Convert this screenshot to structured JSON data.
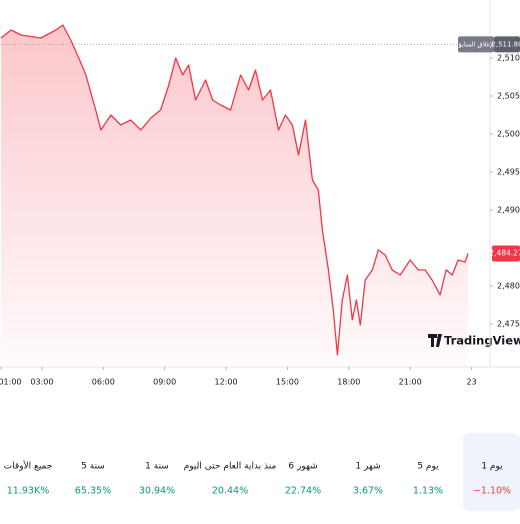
{
  "chart_data": {
    "type": "line",
    "color": "#f23645",
    "x": [
      1.0,
      1.49,
      1.98,
      2.95,
      3.68,
      4.02,
      4.41,
      4.8,
      5.15,
      5.63,
      5.88,
      6.37,
      6.85,
      7.34,
      7.83,
      8.32,
      8.8,
      9.2,
      9.54,
      9.88,
      10.17,
      10.51,
      11.0,
      11.34,
      11.73,
      12.22,
      12.71,
      13.1,
      13.44,
      13.78,
      14.17,
      14.56,
      14.9,
      15.24,
      15.54,
      15.88,
      16.22,
      16.51,
      16.71,
      17.0,
      17.24,
      17.44,
      17.68,
      17.93,
      18.17,
      18.37,
      18.56,
      18.8,
      19.15,
      19.44,
      19.78,
      20.12,
      20.51,
      21.0,
      21.39,
      21.73,
      22.07,
      22.46,
      22.76,
      23.05,
      23.34,
      23.68,
      23.83
    ],
    "values": [
      2512.63,
      2513.68,
      2513.03,
      2512.63,
      2513.68,
      2514.34,
      2512.37,
      2510.0,
      2507.76,
      2503.16,
      2500.53,
      2502.5,
      2501.18,
      2501.84,
      2500.53,
      2502.11,
      2503.16,
      2506.45,
      2510.0,
      2507.76,
      2509.08,
      2504.47,
      2507.11,
      2504.47,
      2503.82,
      2503.16,
      2507.76,
      2505.79,
      2508.42,
      2504.47,
      2505.79,
      2500.53,
      2502.5,
      2501.18,
      2497.24,
      2501.84,
      2493.95,
      2492.63,
      2487.37,
      2482.11,
      2476.84,
      2470.92,
      2478.16,
      2481.45,
      2475.53,
      2478.16,
      2474.87,
      2480.79,
      2482.11,
      2484.74,
      2484.08,
      2482.11,
      2481.45,
      2483.42,
      2482.11,
      2482.11,
      2480.79,
      2478.82,
      2482.11,
      2481.45,
      2483.42,
      2483.16,
      2484.27
    ],
    "xlim": [
      0.95,
      24.9
    ],
    "xticks": [
      {
        "value": 1,
        "label": "01:00"
      },
      {
        "value": 3,
        "label": "03:00"
      },
      {
        "value": 6,
        "label": "06:00"
      },
      {
        "value": 9,
        "label": "09:00"
      },
      {
        "value": 12,
        "label": "12:00"
      },
      {
        "value": 15,
        "label": "15:00"
      },
      {
        "value": 18,
        "label": "18:00"
      },
      {
        "value": 21,
        "label": "21:00"
      },
      {
        "value": 24,
        "label": "23"
      }
    ],
    "ylim": [
      2469.6,
      2515.0
    ],
    "yticks": [
      {
        "value": 2475,
        "label": "2,475.00"
      },
      {
        "value": 2480,
        "label": "2,480.00"
      },
      {
        "value": 2490,
        "label": "2,490.00"
      },
      {
        "value": 2495,
        "label": "2,495.00"
      },
      {
        "value": 2500,
        "label": "2,500.00"
      },
      {
        "value": 2505,
        "label": "2,505.00"
      },
      {
        "value": 2510,
        "label": "2,510.00"
      }
    ],
    "previous_close": {
      "value": 2511.8,
      "label": "2,511.80",
      "name": "الإغلاق السابق"
    },
    "last_price": {
      "value": 2484.27,
      "label": "2,484.27"
    },
    "watermark": "TradingView"
  },
  "periods": [
    {
      "label": "1 يوم",
      "change": "−1.10%",
      "positive": false,
      "selected": true
    },
    {
      "label": "5 يوم",
      "change": "1.13%",
      "positive": true
    },
    {
      "label": "1 شهر",
      "change": "3.67%",
      "positive": true
    },
    {
      "label": "6 شهور",
      "change": "22.74%",
      "positive": true
    },
    {
      "label": "منذ بداية العام حتى اليوم",
      "change": "20.44%",
      "positive": true
    },
    {
      "label": "1 سنة",
      "change": "30.94%",
      "positive": true
    },
    {
      "label": "5 سنة",
      "change": "65.35%",
      "positive": true
    },
    {
      "label": "جميع الأوقات",
      "change": "11.93K%",
      "positive": true
    }
  ]
}
